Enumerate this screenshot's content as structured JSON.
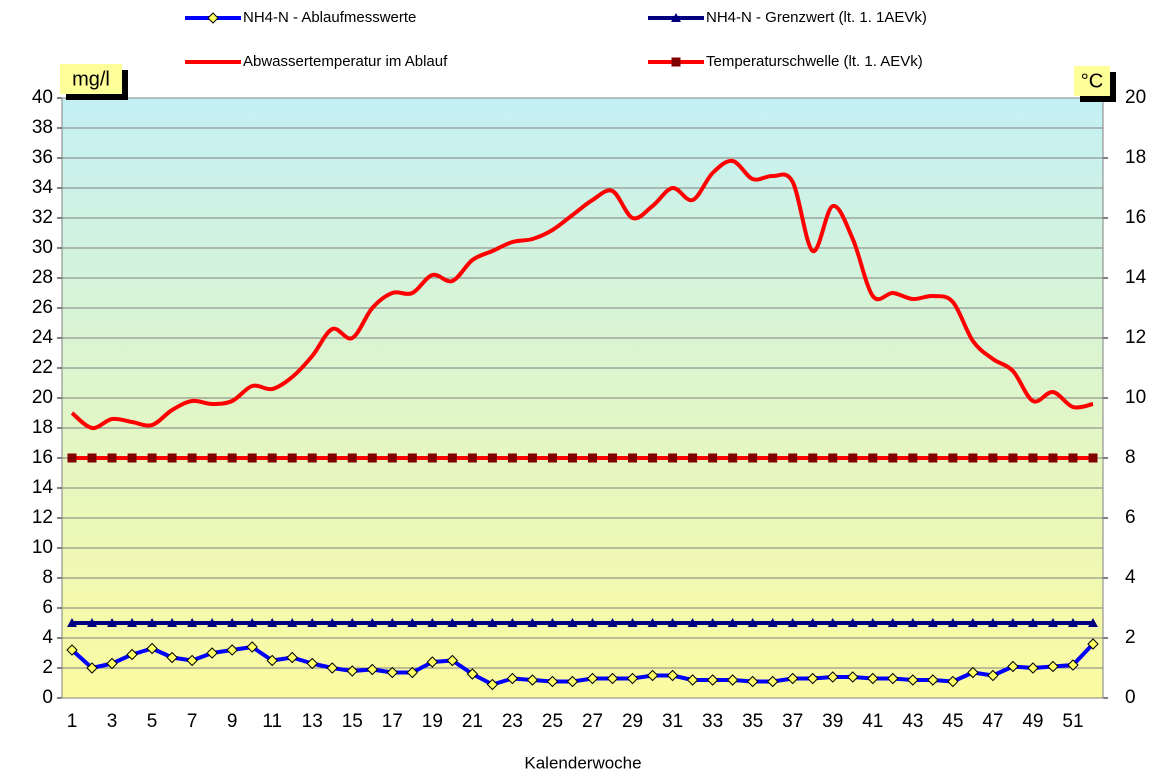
{
  "chart_data": {
    "type": "line",
    "x_label": "Kalenderwoche",
    "y_unit": "mg/l",
    "y2_unit": "°C",
    "categories": [
      1,
      null,
      3,
      null,
      5,
      null,
      7,
      null,
      9,
      null,
      11,
      null,
      13,
      null,
      15,
      null,
      17,
      null,
      19,
      null,
      21,
      null,
      23,
      null,
      25,
      null,
      27,
      null,
      29,
      null,
      31,
      null,
      33,
      null,
      35,
      null,
      37,
      null,
      39,
      null,
      41,
      null,
      43,
      null,
      45,
      null,
      47,
      null,
      49,
      null,
      51,
      null
    ],
    "ylim": [
      0,
      40
    ],
    "yticks": [
      0,
      2,
      4,
      6,
      8,
      10,
      12,
      14,
      16,
      18,
      20,
      22,
      24,
      26,
      28,
      30,
      32,
      34,
      36,
      38,
      40
    ],
    "y2lim": [
      0,
      20
    ],
    "y2ticks": [
      0,
      2,
      4,
      6,
      8,
      10,
      12,
      14,
      16,
      18,
      20
    ],
    "grid": true,
    "legend": "top",
    "series": [
      {
        "name": "NH4-N - Ablaufmesswerte",
        "color": "#0000ff",
        "marker": "diamond",
        "marker_color": "#ffff66",
        "values": [
          3.2,
          2.0,
          2.3,
          2.9,
          3.3,
          2.7,
          2.5,
          3.0,
          3.2,
          3.4,
          2.5,
          2.7,
          2.3,
          2.0,
          1.8,
          1.9,
          1.7,
          1.7,
          2.4,
          2.5,
          1.6,
          0.9,
          1.3,
          1.2,
          1.1,
          1.1,
          1.3,
          1.3,
          1.3,
          1.5,
          1.5,
          1.2,
          1.2,
          1.2,
          1.1,
          1.1,
          1.3,
          1.3,
          1.4,
          1.4,
          1.3,
          1.3,
          1.2,
          1.2,
          1.1,
          1.7,
          1.5,
          2.1,
          2.0,
          2.1,
          2.2,
          3.6
        ]
      },
      {
        "name": "NH4-N - Grenzwert (lt. 1. 1AEVk)",
        "color": "#000080",
        "marker": "triangle",
        "marker_color": "#000080",
        "values": [
          5,
          5,
          5,
          5,
          5,
          5,
          5,
          5,
          5,
          5,
          5,
          5,
          5,
          5,
          5,
          5,
          5,
          5,
          5,
          5,
          5,
          5,
          5,
          5,
          5,
          5,
          5,
          5,
          5,
          5,
          5,
          5,
          5,
          5,
          5,
          5,
          5,
          5,
          5,
          5,
          5,
          5,
          5,
          5,
          5,
          5,
          5,
          5,
          5,
          5,
          5,
          5
        ]
      },
      {
        "name": "Abwassertemperatur im Ablauf",
        "color": "#ff0000",
        "marker": "none",
        "axis": "y2",
        "smooth": true,
        "values": [
          9.5,
          9.0,
          9.3,
          9.2,
          9.1,
          9.6,
          9.9,
          9.8,
          9.9,
          10.4,
          10.3,
          10.7,
          11.4,
          12.3,
          12.0,
          13.0,
          13.5,
          13.5,
          14.1,
          13.9,
          14.6,
          14.9,
          15.2,
          15.3,
          15.6,
          16.1,
          16.6,
          16.9,
          16.0,
          16.4,
          17.0,
          16.6,
          17.5,
          17.9,
          17.3,
          17.4,
          17.2,
          14.9,
          16.4,
          15.3,
          13.4,
          13.5,
          13.3,
          13.4,
          13.2,
          11.9,
          11.3,
          10.9,
          9.9,
          10.2,
          9.7,
          9.8
        ]
      },
      {
        "name": "Temperaturschwelle (lt. 1. AEVk)",
        "color": "#ff0000",
        "marker": "square",
        "marker_color": "#800000",
        "axis": "y2",
        "values": [
          8,
          8,
          8,
          8,
          8,
          8,
          8,
          8,
          8,
          8,
          8,
          8,
          8,
          8,
          8,
          8,
          8,
          8,
          8,
          8,
          8,
          8,
          8,
          8,
          8,
          8,
          8,
          8,
          8,
          8,
          8,
          8,
          8,
          8,
          8,
          8,
          8,
          8,
          8,
          8,
          8,
          8,
          8,
          8,
          8,
          8,
          8,
          8,
          8,
          8,
          8,
          8
        ]
      }
    ]
  }
}
